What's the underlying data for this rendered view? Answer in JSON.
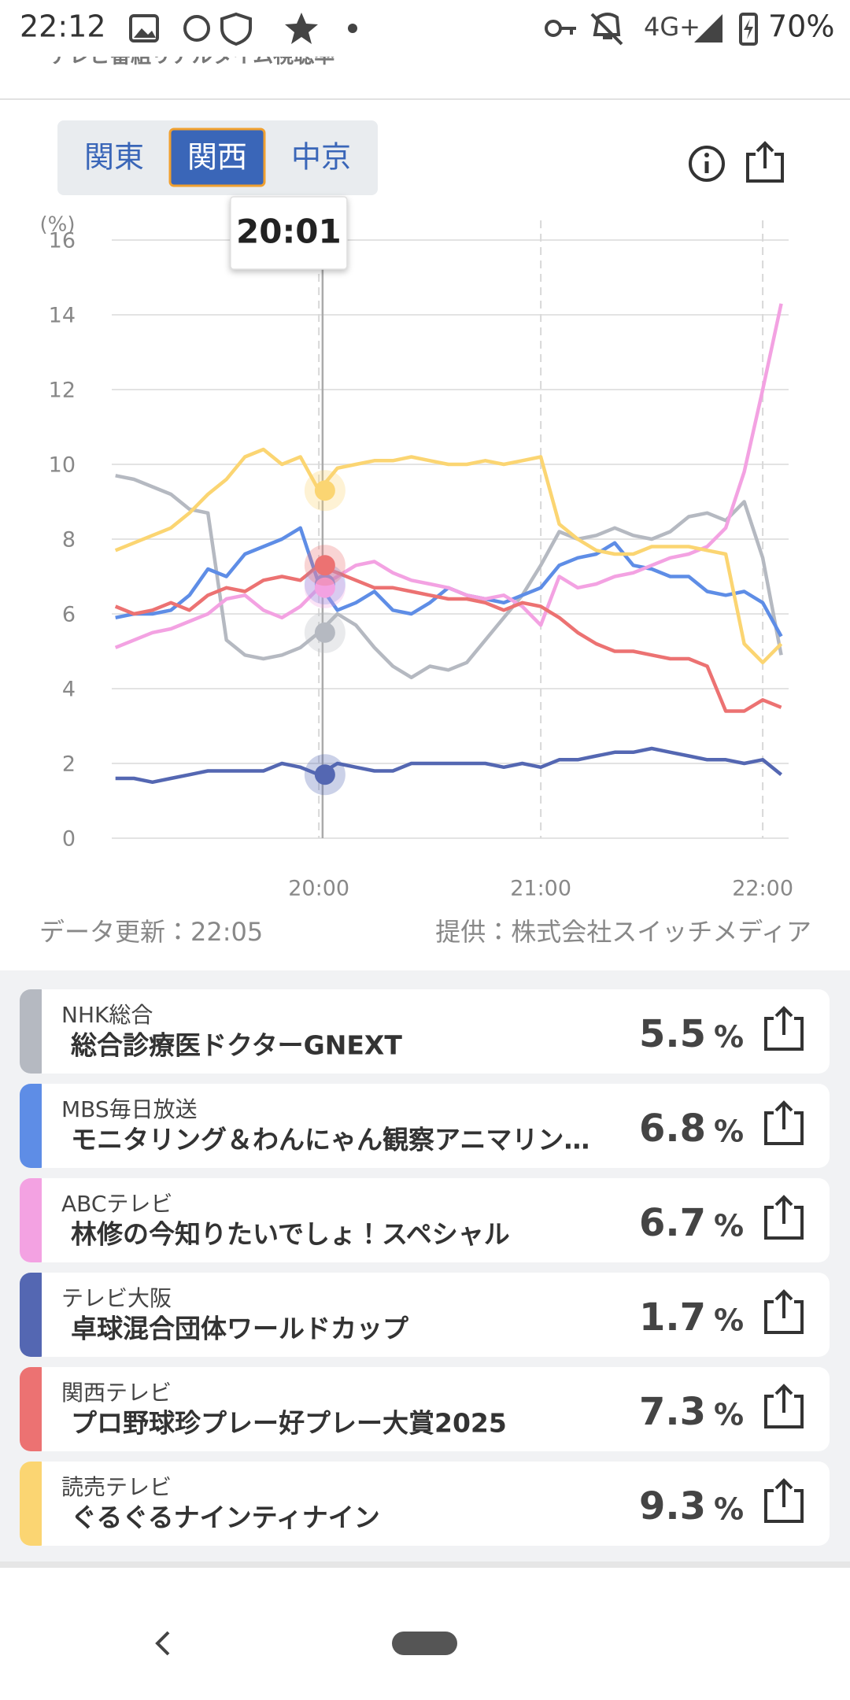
{
  "status_bar": {
    "time": "22:12",
    "network": "4G+",
    "battery": "70%"
  },
  "header": {
    "title": "テレビ番組リアルタイム視聴率"
  },
  "region_tabs": {
    "tabs": [
      "関東",
      "関西",
      "中京"
    ],
    "selected": 1
  },
  "chart_data": {
    "type": "line",
    "y_label": "(%)",
    "x": [
      5,
      10,
      15,
      20,
      25,
      30,
      35,
      40,
      45,
      50,
      55,
      60,
      65,
      70,
      75,
      80,
      85,
      90,
      95,
      100,
      105,
      110,
      115,
      120,
      125,
      130,
      135,
      140,
      145,
      150,
      155,
      160,
      165,
      170,
      175,
      180,
      185
    ],
    "xlim": [
      4,
      187
    ],
    "xticks": [
      {
        "value": 60,
        "label": "20:00"
      },
      {
        "value": 120,
        "label": "21:00"
      },
      {
        "value": 180,
        "label": "22:00"
      }
    ],
    "ylim": [
      0,
      16
    ],
    "yticks": [
      0,
      2,
      4,
      6,
      8,
      10,
      12,
      14,
      16
    ],
    "grid": true,
    "tooltip": {
      "value": 61,
      "label": "20:01"
    },
    "series": [
      {
        "name": "NHK総合",
        "color": "#b5b9c1",
        "values": [
          9.7,
          9.6,
          9.4,
          9.2,
          8.8,
          8.7,
          5.3,
          4.9,
          4.8,
          4.9,
          5.1,
          5.5,
          6.0,
          5.7,
          5.1,
          4.6,
          4.3,
          4.6,
          4.5,
          4.7,
          5.3,
          5.9,
          6.5,
          7.3,
          8.2,
          8.0,
          8.1,
          8.3,
          8.1,
          8.0,
          8.2,
          8.6,
          8.7,
          8.5,
          9.0,
          7.5,
          4.9
        ]
      },
      {
        "name": "MBS毎日放送",
        "color": "#5e8de6",
        "values": [
          5.9,
          6.0,
          6.0,
          6.1,
          6.5,
          7.2,
          7.0,
          7.6,
          7.8,
          8.0,
          8.3,
          6.8,
          6.1,
          6.3,
          6.6,
          6.1,
          6.0,
          6.3,
          6.7,
          6.5,
          6.4,
          6.3,
          6.5,
          6.7,
          7.3,
          7.5,
          7.6,
          7.9,
          7.3,
          7.2,
          7.0,
          7.0,
          6.6,
          6.5,
          6.6,
          6.3,
          5.4
        ]
      },
      {
        "name": "ABCテレビ",
        "color": "#f3a2e2",
        "values": [
          5.1,
          5.3,
          5.5,
          5.6,
          5.8,
          6.0,
          6.4,
          6.5,
          6.1,
          5.9,
          6.2,
          6.7,
          7.0,
          7.3,
          7.4,
          7.1,
          6.9,
          6.8,
          6.7,
          6.5,
          6.4,
          6.5,
          6.2,
          5.7,
          7.0,
          6.7,
          6.8,
          7.0,
          7.1,
          7.3,
          7.5,
          7.6,
          7.8,
          8.3,
          9.8,
          12.0,
          14.3
        ]
      },
      {
        "name": "テレビ大阪",
        "color": "#5467b2",
        "values": [
          1.6,
          1.6,
          1.5,
          1.6,
          1.7,
          1.8,
          1.8,
          1.8,
          1.8,
          2.0,
          1.9,
          1.7,
          2.0,
          1.9,
          1.8,
          1.8,
          2.0,
          2.0,
          2.0,
          2.0,
          2.0,
          1.9,
          2.0,
          1.9,
          2.1,
          2.1,
          2.2,
          2.3,
          2.3,
          2.4,
          2.3,
          2.2,
          2.1,
          2.1,
          2.0,
          2.1,
          1.7
        ]
      },
      {
        "name": "関西テレビ",
        "color": "#ec7272",
        "values": [
          6.2,
          6.0,
          6.1,
          6.3,
          6.1,
          6.5,
          6.7,
          6.6,
          6.9,
          7.0,
          6.9,
          7.3,
          7.1,
          6.9,
          6.7,
          6.7,
          6.6,
          6.5,
          6.4,
          6.4,
          6.3,
          6.1,
          6.3,
          6.2,
          5.9,
          5.5,
          5.2,
          5.0,
          5.0,
          4.9,
          4.8,
          4.8,
          4.6,
          3.4,
          3.4,
          3.7,
          3.5
        ]
      },
      {
        "name": "読売テレビ",
        "color": "#fbd572",
        "values": [
          7.7,
          7.9,
          8.1,
          8.3,
          8.7,
          9.2,
          9.6,
          10.2,
          10.4,
          10.0,
          10.2,
          9.3,
          9.9,
          10.0,
          10.1,
          10.1,
          10.2,
          10.1,
          10.0,
          10.0,
          10.1,
          10.0,
          10.1,
          10.2,
          8.4,
          8.0,
          7.7,
          7.6,
          7.6,
          7.8,
          7.8,
          7.8,
          7.7,
          7.6,
          5.2,
          4.7,
          5.2
        ]
      }
    ]
  },
  "update_info": "データ更新：22:05",
  "provider": "提供：株式会社スイッチメディア",
  "programs": {
    "rating_unit": "%",
    "items": [
      {
        "title": "総合診療医ドクターGNEXT",
        "rating": 5.5
      },
      {
        "title": "モニタリング＆わんにゃん観察アニマリン…",
        "rating": 6.8
      },
      {
        "title": "林修の今知りたいでしょ！スペシャル",
        "rating": 6.7
      },
      {
        "title": "卓球混合団体ワールドカップ",
        "rating": 1.7
      },
      {
        "title": "プロ野球珍プレー好プレー大賞2025",
        "rating": 7.3
      },
      {
        "title": "ぐるぐるナインティナイン",
        "rating": 9.3
      }
    ]
  }
}
